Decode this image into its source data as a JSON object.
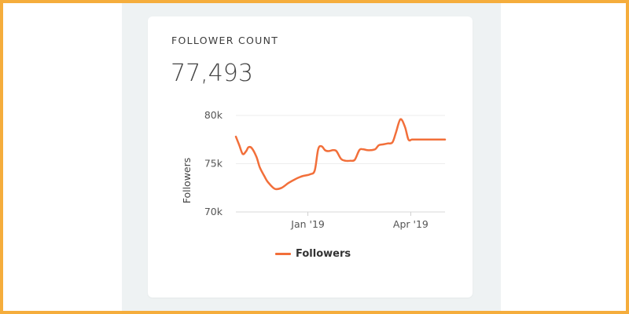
{
  "widget": {
    "title": "FOLLOWER COUNT",
    "current_value": "77,493"
  },
  "colors": {
    "line": "#f26f3a",
    "frame": "#f5ad3c",
    "panel_bg": "#eef2f3"
  },
  "chart_data": {
    "type": "line",
    "title": "",
    "xlabel": "",
    "ylabel": "Followers",
    "ylim": [
      70000,
      80000
    ],
    "y_ticks": [
      70000,
      75000,
      80000
    ],
    "y_tick_labels": [
      "70k",
      "75k",
      "80k"
    ],
    "x_range": [
      "2018-10-30",
      "2019-05-01"
    ],
    "x_ticks": [
      "2019-01-01",
      "2019-04-01"
    ],
    "x_tick_labels": [
      "Jan '19",
      "Apr '19"
    ],
    "grid": true,
    "legend": "bottom-center",
    "series": [
      {
        "name": "Followers",
        "x": [
          "2018-10-30",
          "2018-11-02",
          "2018-11-05",
          "2018-11-08",
          "2018-11-10",
          "2018-11-13",
          "2018-11-17",
          "2018-11-20",
          "2018-11-24",
          "2018-11-27",
          "2018-12-03",
          "2018-12-09",
          "2018-12-15",
          "2018-12-21",
          "2018-12-27",
          "2019-01-03",
          "2019-01-07",
          "2019-01-10",
          "2019-01-13",
          "2019-01-16",
          "2019-01-19",
          "2019-01-23",
          "2019-01-26",
          "2019-01-30",
          "2019-02-03",
          "2019-02-07",
          "2019-02-11",
          "2019-02-15",
          "2019-02-18",
          "2019-02-22",
          "2019-02-25",
          "2019-03-01",
          "2019-03-04",
          "2019-03-08",
          "2019-03-12",
          "2019-03-16",
          "2019-03-19",
          "2019-03-23",
          "2019-03-27",
          "2019-03-30",
          "2019-04-02",
          "2019-04-05",
          "2019-04-07",
          "2019-04-10",
          "2019-04-13",
          "2019-04-17",
          "2019-04-21",
          "2019-04-25",
          "2019-05-01"
        ],
        "values": [
          77800,
          76900,
          76000,
          76300,
          76700,
          76600,
          75700,
          74600,
          73700,
          73100,
          72400,
          72500,
          73000,
          73400,
          73700,
          73900,
          74300,
          76500,
          76800,
          76400,
          76300,
          76400,
          76300,
          75500,
          75300,
          75300,
          75400,
          76400,
          76500,
          76400,
          76400,
          76500,
          76900,
          77000,
          77100,
          77200,
          78200,
          79600,
          78800,
          77500,
          77500,
          77500,
          77500,
          77500,
          77500,
          77500,
          77500,
          77500,
          77500
        ]
      }
    ]
  }
}
